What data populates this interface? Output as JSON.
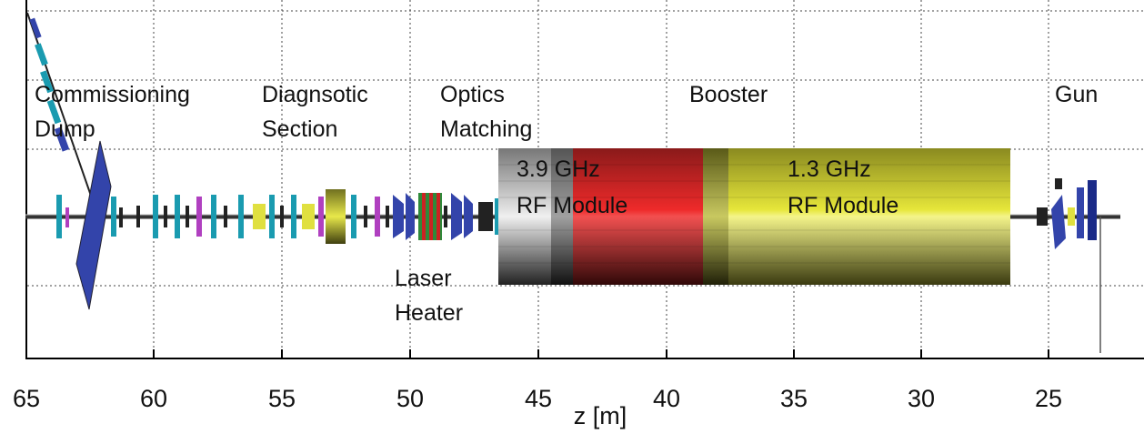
{
  "axis": {
    "label": "z [m]",
    "ticks": [
      "65",
      "60",
      "55",
      "50",
      "45",
      "40",
      "35",
      "30",
      "25"
    ]
  },
  "sections": {
    "commissioning_dump": [
      "Commissioning",
      "Dump"
    ],
    "diagnostic_section": [
      "Diagnsotic",
      "Section"
    ],
    "optics_matching": [
      "Optics",
      "Matching"
    ],
    "booster": "Booster",
    "gun": "Gun",
    "laser_heater": [
      "Laser",
      "Heater"
    ]
  },
  "modules": {
    "rf_39": [
      "3.9 GHz",
      "RF Module"
    ],
    "rf_13": [
      "1.3 GHz",
      "RF Module"
    ]
  },
  "colors": {
    "beamline": "#555555",
    "magnet_blue": "#3344aa",
    "quad_cyan": "#1a9bb0",
    "magenta": "#b040c0",
    "yellow": "#e0e040",
    "rf_grey": "#8a8a8a",
    "rf_red": "#d0202a",
    "rf_olive": "#b8b830"
  }
}
